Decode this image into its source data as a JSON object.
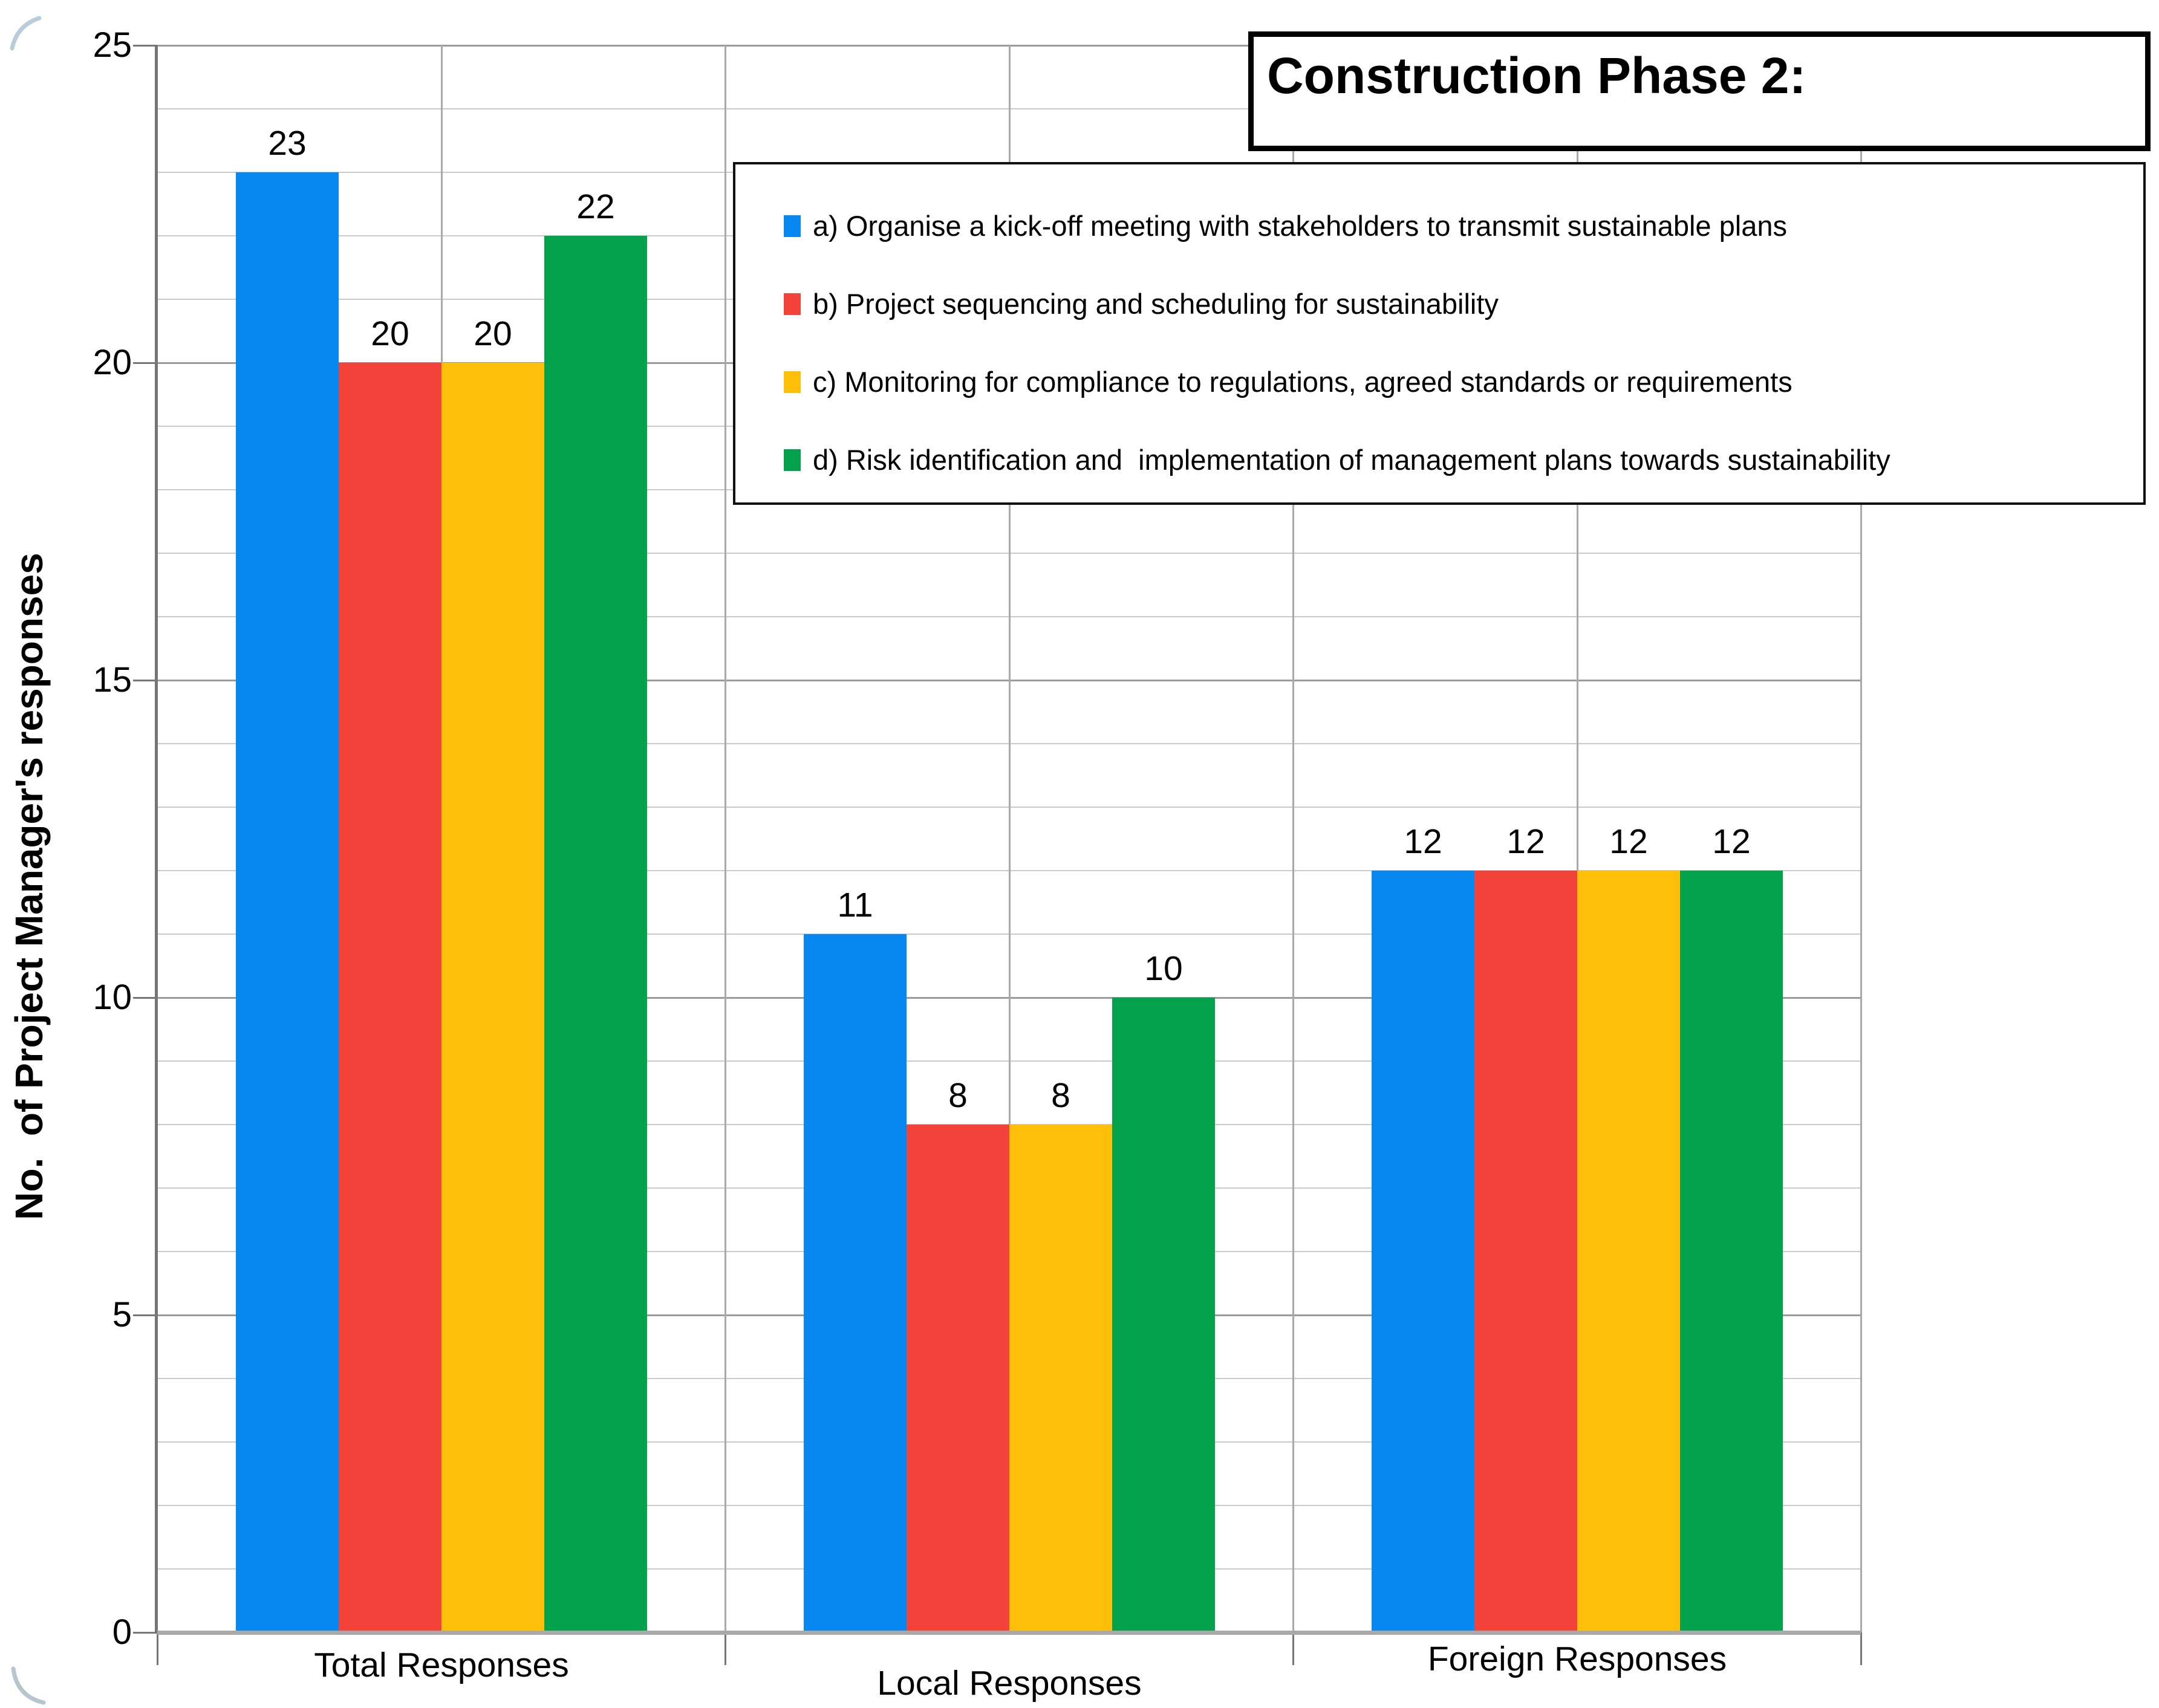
{
  "chart_data": {
    "type": "bar",
    "title": "Construction Phase 2:",
    "ylabel": "No.  of Project Manager's responses",
    "categories": [
      "Total Responses",
      "Local Responses",
      "Foreign Responses"
    ],
    "series": [
      {
        "name": "a) Organise a kick-off meeting with stakeholders to transmit sustainable plans",
        "color": "#0788f0",
        "values": [
          23,
          11,
          12
        ]
      },
      {
        "name": "b) Project sequencing and scheduling for sustainability",
        "color": "#f4433a",
        "values": [
          20,
          8,
          12
        ]
      },
      {
        "name": "c) Monitoring for compliance to regulations, agreed standards or requirements",
        "color": "#fdbf07",
        "values": [
          20,
          8,
          12
        ]
      },
      {
        "name": "d) Risk identification and  implementation of management plans towards sustainability",
        "color": "#05a24d",
        "values": [
          22,
          10,
          12
        ]
      }
    ],
    "ylim": [
      0,
      25
    ],
    "y_ticks": [
      0,
      5,
      10,
      15,
      20,
      25
    ],
    "y_minor_step": 1,
    "grid": true,
    "legend_position": "upper-right-box",
    "value_labels": true
  },
  "colors": {
    "grid_minor": "#cacaca",
    "grid_major": "#9b9b9b",
    "axis": "#767676",
    "baseline": "#a9a9a9",
    "corner_artifact": "#b9cdd8"
  }
}
